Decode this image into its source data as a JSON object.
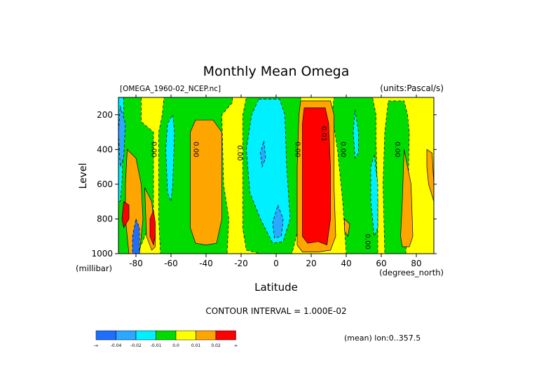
{
  "chart_data": {
    "type": "heatmap",
    "title": "Monthly Mean Omega",
    "file_label": "[OMEGA_1960-02_NCEP.nc]",
    "units_label": "(units:Pascal/s)",
    "xlabel": "Latitude",
    "xunit_label": "(degrees_north)",
    "ylabel": "Level",
    "yunit_label": "(millibar)",
    "xlim": [
      -90,
      90
    ],
    "ylim": [
      1000,
      100
    ],
    "x_ticks": [
      -80,
      -60,
      -40,
      -20,
      0,
      20,
      40,
      60,
      80
    ],
    "y_ticks": [
      200,
      400,
      600,
      800,
      1000
    ],
    "contour_interval_label": "CONTOUR INTERVAL = 1.000E-02",
    "mean_label": "(mean) lon:0..357.5",
    "contour_labels": [
      {
        "x": -71,
        "y": 400,
        "text": "0.00"
      },
      {
        "x": -47,
        "y": 400,
        "text": "0.00"
      },
      {
        "x": -22,
        "y": 420,
        "text": "0.00"
      },
      {
        "x": 11,
        "y": 400,
        "text": "0.00"
      },
      {
        "x": 26,
        "y": 310,
        "text": "0.01"
      },
      {
        "x": 37,
        "y": 400,
        "text": "0.00"
      },
      {
        "x": 51,
        "y": 930,
        "text": "0.00"
      },
      {
        "x": 68,
        "y": 400,
        "text": "0.00"
      }
    ],
    "legend": {
      "colors": [
        "#1f6fff",
        "#2aa7ff",
        "#00f0ff",
        "#00dc00",
        "#ffff00",
        "#ffa500",
        "#ff0000"
      ],
      "tick_labels": [
        "-∞",
        "-0.04",
        "-0.02",
        "-0.01",
        "0.0",
        "0.01",
        "0.02",
        "∞"
      ]
    },
    "field": {
      "background_category": 4,
      "regions": [
        {
          "category": 3,
          "points": [
            [
              -88,
              100
            ],
            [
              -77,
              100
            ],
            [
              -77,
              240
            ],
            [
              -70,
              300
            ],
            [
              -70,
              800
            ],
            [
              -75,
              900
            ],
            [
              -79,
              1000
            ],
            [
              -90,
              1000
            ],
            [
              -90,
              100
            ]
          ]
        },
        {
          "category": 3,
          "points": [
            [
              -64,
              100
            ],
            [
              -25,
              100
            ],
            [
              -25,
              130
            ],
            [
              -31,
              200
            ],
            [
              -30,
              600
            ],
            [
              -27,
              800
            ],
            [
              -28,
              1000
            ],
            [
              -40,
              1000
            ],
            [
              -55,
              1000
            ],
            [
              -62,
              1000
            ],
            [
              -66,
              1000
            ],
            [
              -67,
              800
            ],
            [
              -67,
              300
            ],
            [
              -65,
              200
            ],
            [
              -64,
              100
            ]
          ]
        },
        {
          "category": 3,
          "points": [
            [
              -17,
              100
            ],
            [
              14,
              100
            ],
            [
              14,
              800
            ],
            [
              9,
              1000
            ],
            [
              -9,
              1000
            ],
            [
              -17,
              980
            ],
            [
              -19,
              860
            ],
            [
              -19,
              200
            ],
            [
              -17,
              100
            ]
          ]
        },
        {
          "category": 3,
          "points": [
            [
              33,
              100
            ],
            [
              55,
              100
            ],
            [
              57,
              200
            ],
            [
              57,
              350
            ],
            [
              58,
              700
            ],
            [
              58,
              1000
            ],
            [
              46,
              1000
            ],
            [
              40,
              1000
            ],
            [
              38,
              700
            ],
            [
              35,
              400
            ],
            [
              32,
              200
            ],
            [
              33,
              100
            ]
          ]
        },
        {
          "category": 3,
          "points": [
            [
              64,
              120
            ],
            [
              73,
              120
            ],
            [
              75,
              200
            ],
            [
              76,
              300
            ],
            [
              75,
              800
            ],
            [
              74,
              1000
            ],
            [
              62,
              1000
            ],
            [
              61,
              600
            ],
            [
              62,
              300
            ],
            [
              64,
              120
            ]
          ]
        },
        {
          "category": 2,
          "points": [
            [
              -90,
              100
            ],
            [
              -87,
              100
            ],
            [
              -87,
              250
            ],
            [
              -88,
              600
            ],
            [
              -89,
              700
            ],
            [
              -90,
              700
            ]
          ]
        },
        {
          "category": 2,
          "points": [
            [
              -59,
              200
            ],
            [
              -58,
              300
            ],
            [
              -59,
              600
            ],
            [
              -60,
              700
            ],
            [
              -62,
              650
            ],
            [
              -63,
              400
            ],
            [
              -62,
              250
            ],
            [
              -59,
              200
            ]
          ]
        },
        {
          "category": 2,
          "points": [
            [
              -10,
              110
            ],
            [
              2,
              110
            ],
            [
              5,
              200
            ],
            [
              6,
              500
            ],
            [
              8,
              800
            ],
            [
              4,
              930
            ],
            [
              -2,
              940
            ],
            [
              -9,
              800
            ],
            [
              -15,
              650
            ],
            [
              -17,
              400
            ],
            [
              -14,
              200
            ],
            [
              -10,
              110
            ]
          ]
        },
        {
          "category": 2,
          "points": [
            [
              45,
              170
            ],
            [
              47,
              300
            ],
            [
              47,
              420
            ],
            [
              45,
              450
            ],
            [
              44,
              300
            ],
            [
              45,
              170
            ]
          ]
        },
        {
          "category": 2,
          "points": [
            [
              56,
              430
            ],
            [
              58,
              600
            ],
            [
              58,
              850
            ],
            [
              56,
              900
            ],
            [
              54,
              700
            ],
            [
              54,
              500
            ],
            [
              56,
              430
            ]
          ]
        },
        {
          "category": 1,
          "points": [
            [
              -89,
              150
            ],
            [
              -86,
              250
            ],
            [
              -87,
              450
            ],
            [
              -89,
              500
            ],
            [
              -90,
              300
            ]
          ]
        },
        {
          "category": 1,
          "points": [
            [
              -7,
              350
            ],
            [
              -6,
              450
            ],
            [
              -8,
              500
            ],
            [
              -9,
              420
            ],
            [
              -7,
              350
            ]
          ]
        },
        {
          "category": 1,
          "points": [
            [
              1,
              720
            ],
            [
              4,
              800
            ],
            [
              3,
              900
            ],
            [
              -1,
              910
            ],
            [
              -2,
              820
            ],
            [
              1,
              720
            ]
          ]
        },
        {
          "category": 5,
          "points": [
            [
              -85,
              400
            ],
            [
              -80,
              450
            ],
            [
              -77,
              600
            ],
            [
              -76,
              800
            ],
            [
              -78,
              1000
            ],
            [
              -84,
              1000
            ],
            [
              -86,
              800
            ],
            [
              -86,
              600
            ],
            [
              -85,
              400
            ]
          ]
        },
        {
          "category": 5,
          "points": [
            [
              -75,
              620
            ],
            [
              -71,
              700
            ],
            [
              -69,
              900
            ],
            [
              -69,
              960
            ],
            [
              -71,
              980
            ],
            [
              -74,
              900
            ],
            [
              -75,
              620
            ]
          ]
        },
        {
          "category": 5,
          "points": [
            [
              -43,
              230
            ],
            [
              -36,
              230
            ],
            [
              -31,
              300
            ],
            [
              -31,
              800
            ],
            [
              -34,
              940
            ],
            [
              -40,
              950
            ],
            [
              -46,
              940
            ],
            [
              -49,
              850
            ],
            [
              -49,
              300
            ],
            [
              -46,
              230
            ],
            [
              -43,
              230
            ]
          ]
        },
        {
          "category": 5,
          "points": [
            [
              14,
              120
            ],
            [
              31,
              120
            ],
            [
              33,
              200
            ],
            [
              33,
              600
            ],
            [
              34,
              900
            ],
            [
              31,
              980
            ],
            [
              24,
              990
            ],
            [
              15,
              990
            ],
            [
              12,
              950
            ],
            [
              12,
              500
            ],
            [
              13,
              200
            ],
            [
              14,
              120
            ]
          ]
        },
        {
          "category": 5,
          "points": [
            [
              73,
              400
            ],
            [
              77,
              600
            ],
            [
              78,
              900
            ],
            [
              76,
              960
            ],
            [
              72,
              960
            ],
            [
              71,
              900
            ],
            [
              72,
              700
            ],
            [
              73,
              400
            ]
          ]
        },
        {
          "category": 5,
          "points": [
            [
              86,
              400
            ],
            [
              89,
              420
            ],
            [
              90,
              600
            ],
            [
              90,
              700
            ],
            [
              87,
              600
            ],
            [
              86,
              500
            ],
            [
              86,
              400
            ]
          ]
        },
        {
          "category": 5,
          "points": [
            [
              39,
              800
            ],
            [
              42,
              830
            ],
            [
              41,
              900
            ],
            [
              39,
              870
            ],
            [
              39,
              800
            ]
          ]
        },
        {
          "category": 6,
          "points": [
            [
              16,
              160
            ],
            [
              28,
              160
            ],
            [
              30,
              250
            ],
            [
              31,
              500
            ],
            [
              31,
              800
            ],
            [
              29,
              950
            ],
            [
              24,
              930
            ],
            [
              18,
              940
            ],
            [
              15,
              900
            ],
            [
              15,
              500
            ],
            [
              15,
              250
            ],
            [
              16,
              160
            ]
          ]
        },
        {
          "category": 6,
          "points": [
            [
              -87,
              700
            ],
            [
              -84,
              720
            ],
            [
              -84,
              800
            ],
            [
              -87,
              850
            ],
            [
              -88,
              800
            ],
            [
              -87,
              700
            ]
          ]
        },
        {
          "category": 6,
          "points": [
            [
              -70,
              750
            ],
            [
              -69,
              820
            ],
            [
              -69,
              900
            ],
            [
              -70,
              950
            ],
            [
              -72,
              900
            ],
            [
              -72,
              800
            ],
            [
              -70,
              750
            ]
          ]
        },
        {
          "category": 0,
          "points": [
            [
              -80,
              800
            ],
            [
              -78,
              850
            ],
            [
              -78,
              1000
            ],
            [
              -82,
              1000
            ],
            [
              -82,
              900
            ],
            [
              -80,
              800
            ]
          ]
        }
      ]
    }
  }
}
